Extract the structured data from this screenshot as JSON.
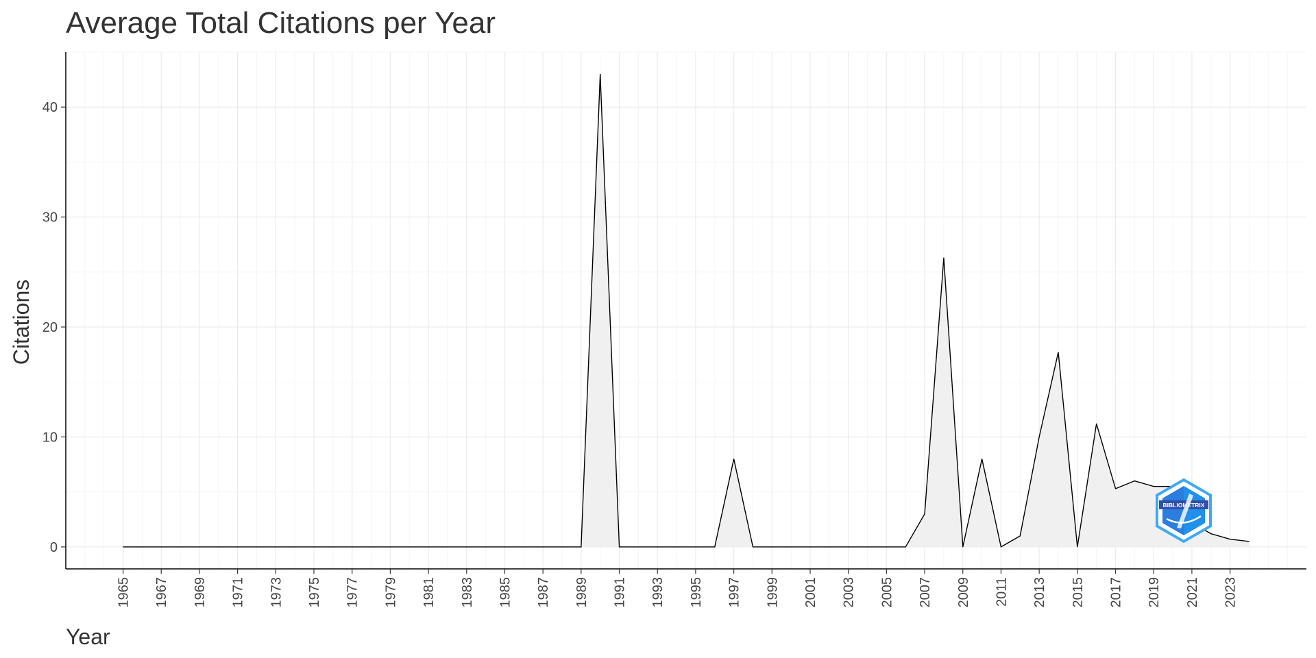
{
  "chart_data": {
    "type": "area",
    "title": "Average Total Citations per Year",
    "xlabel": "Year",
    "ylabel": "Citations",
    "x": [
      1965,
      1966,
      1967,
      1968,
      1969,
      1970,
      1971,
      1972,
      1973,
      1974,
      1975,
      1976,
      1977,
      1978,
      1979,
      1980,
      1981,
      1982,
      1983,
      1984,
      1985,
      1986,
      1987,
      1988,
      1989,
      1990,
      1991,
      1992,
      1993,
      1994,
      1995,
      1996,
      1997,
      1998,
      1999,
      2000,
      2001,
      2002,
      2003,
      2004,
      2005,
      2006,
      2007,
      2008,
      2009,
      2010,
      2011,
      2012,
      2013,
      2014,
      2015,
      2016,
      2017,
      2018,
      2019,
      2020,
      2021,
      2022,
      2023,
      2024
    ],
    "y": [
      0,
      0,
      0,
      0,
      0,
      0,
      0,
      0,
      0,
      0,
      0,
      0,
      0,
      0,
      0,
      0,
      0,
      0,
      0,
      0,
      0,
      0,
      0,
      0,
      0,
      43,
      0,
      0,
      0,
      0,
      0,
      0,
      8,
      0,
      0,
      0,
      0,
      0,
      0,
      0,
      0,
      0,
      3,
      26.3,
      0,
      8,
      0,
      1,
      10,
      17.7,
      0,
      11.2,
      5.3,
      6,
      5.5,
      5.5,
      2.2,
      1.2,
      0.7,
      0.5
    ],
    "x_tick_labels": [
      "1965",
      "1967",
      "1969",
      "1971",
      "1973",
      "1975",
      "1977",
      "1979",
      "1981",
      "1983",
      "1985",
      "1987",
      "1989",
      "1991",
      "1993",
      "1995",
      "1997",
      "1999",
      "2001",
      "2003",
      "2005",
      "2007",
      "2009",
      "2011",
      "2013",
      "2015",
      "2017",
      "2019",
      "2021",
      "2023"
    ],
    "y_ticks": [
      0,
      10,
      20,
      30,
      40
    ],
    "y_tick_labels": [
      "0",
      "10",
      "20",
      "30",
      "40"
    ],
    "xlim": [
      1962,
      2027
    ],
    "ylim": [
      -2,
      45
    ],
    "grid": true,
    "legend": "none",
    "colors": {
      "fill": "#f0f0f0",
      "line": "#000000",
      "grid": "#ebebeb",
      "text": "#333333"
    }
  },
  "logo": {
    "text": "BIBLIOMETRIX",
    "colors": {
      "outer": "#3fa9f5",
      "inner": "#2b7de0",
      "banner": "#2f4fa8"
    }
  }
}
